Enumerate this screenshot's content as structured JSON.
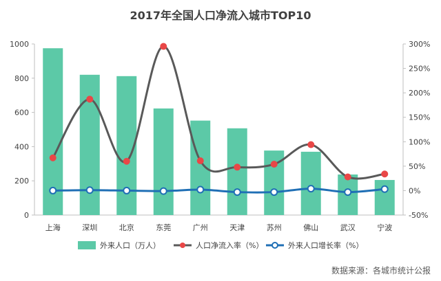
{
  "chart_data": {
    "type": "bar",
    "title": "2017年全国人口净流入城市TOP10",
    "categories": [
      "上海",
      "深圳",
      "北京",
      "东莞",
      "广州",
      "天津",
      "苏州",
      "佛山",
      "武汉",
      "宁波"
    ],
    "series": [
      {
        "name": "外来人口（万人）",
        "type": "bar",
        "axis": "left",
        "color": "#5cc9a7",
        "values": [
          975,
          820,
          812,
          623,
          552,
          507,
          377,
          370,
          237,
          205
        ]
      },
      {
        "name": "人口净流入率（%）",
        "type": "line-smooth",
        "axis": "right",
        "color": "#595959",
        "marker_color": "#e94747",
        "values": [
          67,
          187,
          60,
          295,
          61,
          48,
          54,
          94,
          28,
          34
        ]
      },
      {
        "name": "外来人口增长率（%）",
        "type": "line-smooth",
        "axis": "right",
        "color": "#1f6fb5",
        "marker_color": "#ffffff",
        "values": [
          0,
          1,
          0,
          -1,
          2,
          -3,
          -3,
          4,
          -3,
          3
        ]
      }
    ],
    "y_left": {
      "min": 0,
      "max": 1000,
      "step": 200
    },
    "y_right": {
      "min": -50,
      "max": 300,
      "step": 50,
      "unit": "%"
    },
    "legend_position": "bottom",
    "grid": false
  },
  "source_text": "数据来源：各城市统计公报"
}
